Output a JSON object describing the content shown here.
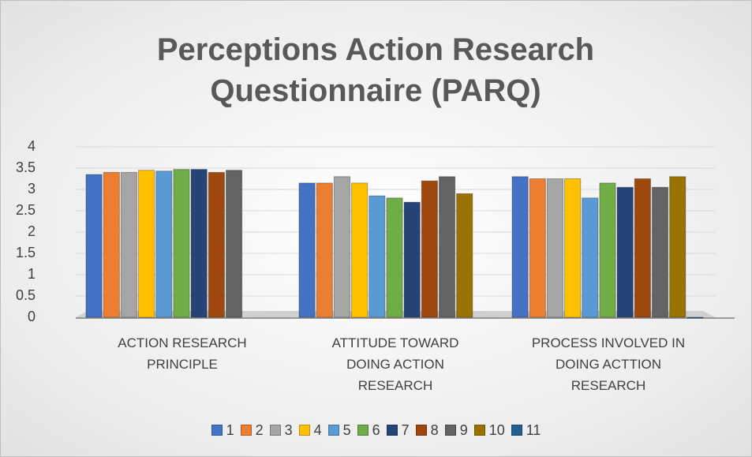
{
  "chart_data": {
    "type": "bar",
    "title": "Perceptions Action Research Questionnaire (PARQ)",
    "categories": [
      "ACTION RESEARCH PRINCIPLE",
      "ATTITUDE TOWARD DOING ACTION RESEARCH",
      "PROCESS INVOLVED IN DOING ACTTION RESEARCH"
    ],
    "series": [
      {
        "name": "1",
        "color": "#4472c4",
        "values": [
          3.35,
          3.15,
          3.3
        ]
      },
      {
        "name": "2",
        "color": "#ed7d31",
        "values": [
          3.4,
          3.15,
          3.25
        ]
      },
      {
        "name": "3",
        "color": "#a5a5a5",
        "values": [
          3.4,
          3.3,
          3.25
        ]
      },
      {
        "name": "4",
        "color": "#ffc000",
        "values": [
          3.45,
          3.15,
          3.25
        ]
      },
      {
        "name": "5",
        "color": "#5b9bd5",
        "values": [
          3.43,
          2.85,
          2.8
        ]
      },
      {
        "name": "6",
        "color": "#70ad47",
        "values": [
          3.47,
          2.8,
          3.15
        ]
      },
      {
        "name": "7",
        "color": "#264478",
        "values": [
          3.47,
          2.7,
          3.05
        ]
      },
      {
        "name": "8",
        "color": "#9e480e",
        "values": [
          3.4,
          3.2,
          3.25
        ]
      },
      {
        "name": "9",
        "color": "#636363",
        "values": [
          3.45,
          3.3,
          3.05
        ]
      },
      {
        "name": "10",
        "color": "#997300",
        "values": [
          null,
          2.9,
          3.3
        ]
      },
      {
        "name": "11",
        "color": "#255e91",
        "values": [
          null,
          null,
          0
        ]
      }
    ],
    "ylim": [
      0,
      4
    ],
    "yticks": [
      0,
      0.5,
      1,
      1.5,
      2,
      2.5,
      3,
      3.5,
      4
    ],
    "grid": true,
    "legend": "bottom"
  }
}
